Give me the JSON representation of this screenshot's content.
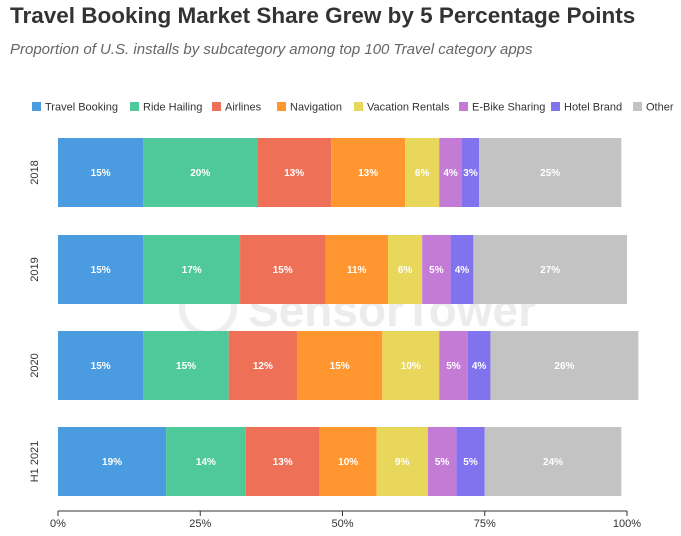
{
  "title": "Travel Booking Market Share Grew by 5 Percentage Points",
  "subtitle": "Proportion of U.S. installs by subcategory among top 100 Travel category apps",
  "watermark": "SensorTower",
  "chart_data": {
    "type": "bar",
    "orientation": "horizontal",
    "stacked": true,
    "categories": [
      "2018",
      "2019",
      "2020",
      "H1 2021"
    ],
    "series": [
      {
        "name": "Travel Booking",
        "color": "#4a9be0",
        "values": [
          15,
          15,
          15,
          19
        ]
      },
      {
        "name": "Ride Hailing",
        "color": "#4fc99a",
        "values": [
          20,
          17,
          15,
          14
        ]
      },
      {
        "name": "Airlines",
        "color": "#ee7157",
        "values": [
          13,
          15,
          12,
          13
        ]
      },
      {
        "name": "Navigation",
        "color": "#ff9630",
        "values": [
          13,
          11,
          15,
          10
        ]
      },
      {
        "name": "Vacation Rentals",
        "color": "#e9d75c",
        "values": [
          6,
          6,
          10,
          9
        ]
      },
      {
        "name": "E-Bike Sharing",
        "color": "#c47bd6",
        "values": [
          4,
          5,
          5,
          5
        ]
      },
      {
        "name": "Hotel Brand",
        "color": "#8172ee",
        "values": [
          3,
          4,
          4,
          5
        ]
      },
      {
        "name": "Other",
        "color": "#c3c3c3",
        "values": [
          25,
          27,
          26,
          24
        ]
      }
    ],
    "xlim": [
      0,
      100
    ],
    "xticks": [
      "0%",
      "25%",
      "50%",
      "75%",
      "100%"
    ],
    "grid": false,
    "legend": "top"
  }
}
